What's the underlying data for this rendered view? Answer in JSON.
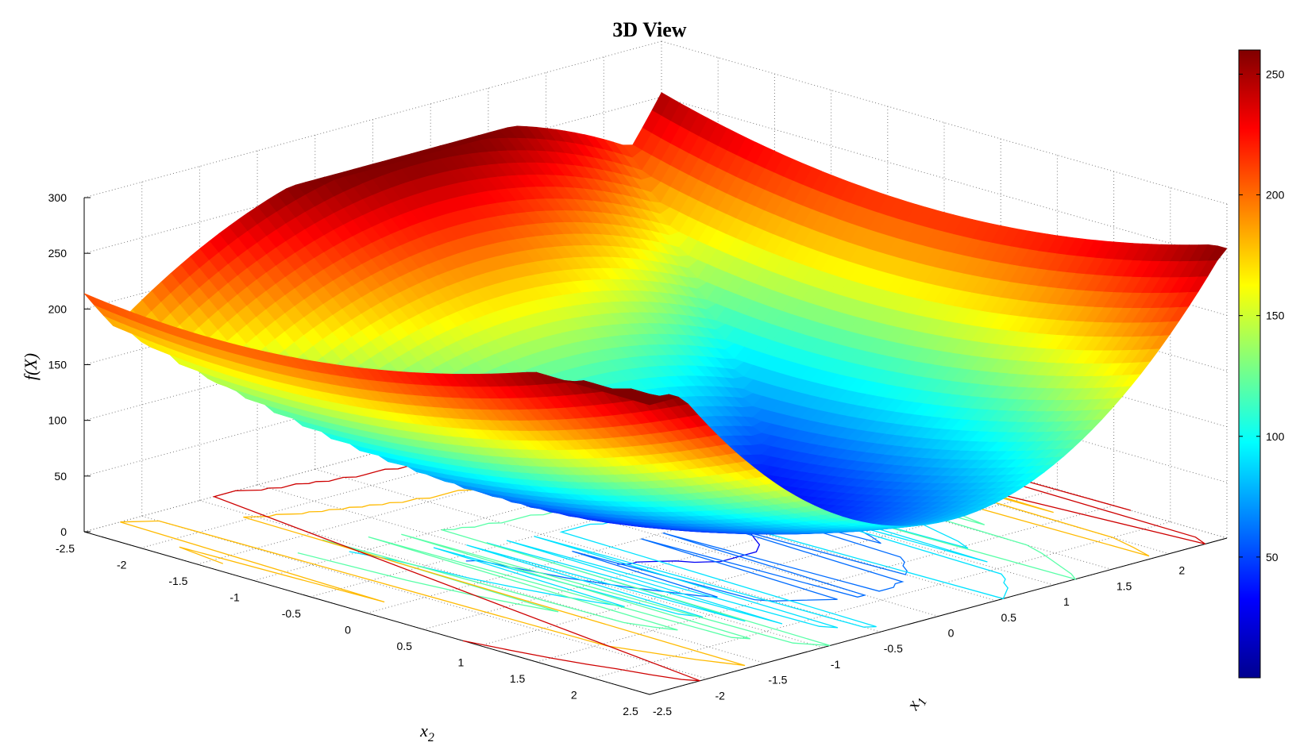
{
  "chart_data": {
    "type": "surface",
    "title": "3D View",
    "xlabel": "x_1",
    "ylabel": "x_2",
    "zlabel": "f(X)",
    "x1_ticks": [
      "-2.5",
      "-2",
      "-1.5",
      "-1",
      "-0.5",
      "0",
      "0.5",
      "1",
      "1.5",
      "2"
    ],
    "x2_ticks": [
      "-2.5",
      "-2",
      "-1.5",
      "-1",
      "-0.5",
      "0",
      "0.5",
      "1",
      "1.5",
      "2",
      "2.5"
    ],
    "z_ticks": [
      "0",
      "50",
      "100",
      "150",
      "200",
      "250",
      "300"
    ],
    "xlim": [
      -2.5,
      2.5
    ],
    "ylim": [
      -2.5,
      2.5
    ],
    "zlim": [
      0,
      300
    ],
    "grid": true,
    "colormap": "jet",
    "colorbar": {
      "range": [
        0,
        260
      ],
      "ticks": [
        "50",
        "100",
        "150",
        "200",
        "250"
      ]
    },
    "contours_on_floor": true
  }
}
